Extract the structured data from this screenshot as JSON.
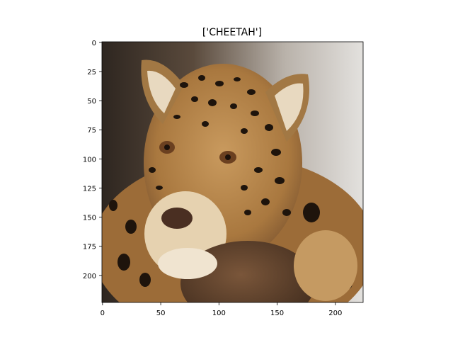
{
  "title": "['CHEETAH']",
  "axes": {
    "x_ticks": [
      "0",
      "50",
      "100",
      "150",
      "200"
    ],
    "y_ticks": [
      "0",
      "25",
      "50",
      "75",
      "100",
      "125",
      "150",
      "175",
      "200"
    ]
  },
  "image": {
    "subject": "jaguar resting its head on a log",
    "colors": {
      "background_dark": "#3a3028",
      "background_light": "#d9d6d2",
      "fur": "#b8884e",
      "fur_light": "#e6d2b0",
      "spots": "#1e140c",
      "log": "#5a3e2a"
    }
  }
}
